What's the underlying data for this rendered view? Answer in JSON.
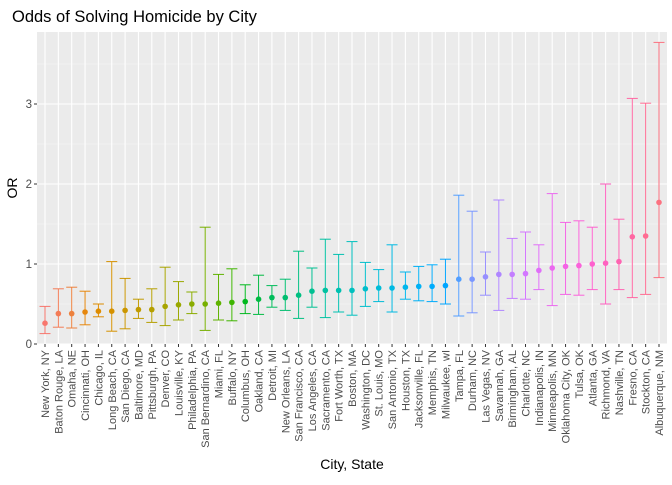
{
  "chart_data": {
    "type": "scatter",
    "title": "Odds of Solving Homicide by City",
    "xlabel": "City, State",
    "ylabel": "OR",
    "ylim": [
      0,
      3.9
    ],
    "yticks": [
      0,
      1,
      2,
      3
    ],
    "grid": true,
    "legend": "none",
    "error_bars": true,
    "points": [
      {
        "city": "New York, NY",
        "or": 0.26,
        "lo": 0.13,
        "hi": 0.47
      },
      {
        "city": "Baton Rouge, LA",
        "or": 0.38,
        "lo": 0.21,
        "hi": 0.69
      },
      {
        "city": "Omaha, NE",
        "or": 0.38,
        "lo": 0.2,
        "hi": 0.71
      },
      {
        "city": "Cincinnati, OH",
        "or": 0.4,
        "lo": 0.24,
        "hi": 0.66
      },
      {
        "city": "Chicago, IL",
        "or": 0.41,
        "lo": 0.34,
        "hi": 0.5
      },
      {
        "city": "Long Beach, CA",
        "or": 0.41,
        "lo": 0.16,
        "hi": 1.03
      },
      {
        "city": "San Diego, CA",
        "or": 0.42,
        "lo": 0.19,
        "hi": 0.82
      },
      {
        "city": "Baltimore, MD",
        "or": 0.43,
        "lo": 0.32,
        "hi": 0.56
      },
      {
        "city": "Pittsburgh, PA",
        "or": 0.43,
        "lo": 0.27,
        "hi": 0.69
      },
      {
        "city": "Denver, CO",
        "or": 0.47,
        "lo": 0.23,
        "hi": 0.96
      },
      {
        "city": "Louisville, KY",
        "or": 0.49,
        "lo": 0.3,
        "hi": 0.78
      },
      {
        "city": "Philadelphia, PA",
        "or": 0.5,
        "lo": 0.38,
        "hi": 0.65
      },
      {
        "city": "San Bernardino, CA",
        "or": 0.5,
        "lo": 0.17,
        "hi": 1.46
      },
      {
        "city": "Miami, FL",
        "or": 0.51,
        "lo": 0.3,
        "hi": 0.87
      },
      {
        "city": "Buffalo, NY",
        "or": 0.52,
        "lo": 0.29,
        "hi": 0.94
      },
      {
        "city": "Columbus, OH",
        "or": 0.53,
        "lo": 0.38,
        "hi": 0.74
      },
      {
        "city": "Oakland, CA",
        "or": 0.56,
        "lo": 0.37,
        "hi": 0.86
      },
      {
        "city": "Detroit, MI",
        "or": 0.58,
        "lo": 0.46,
        "hi": 0.73
      },
      {
        "city": "New Orleans, LA",
        "or": 0.58,
        "lo": 0.42,
        "hi": 0.81
      },
      {
        "city": "San Francisco, CA",
        "or": 0.61,
        "lo": 0.32,
        "hi": 1.16
      },
      {
        "city": "Los Angeles, CA",
        "or": 0.66,
        "lo": 0.46,
        "hi": 0.95
      },
      {
        "city": "Sacramento, CA",
        "or": 0.67,
        "lo": 0.33,
        "hi": 1.31
      },
      {
        "city": "Fort Worth, TX",
        "or": 0.67,
        "lo": 0.4,
        "hi": 1.12
      },
      {
        "city": "Boston, MA",
        "or": 0.67,
        "lo": 0.36,
        "hi": 1.28
      },
      {
        "city": "Washington, DC",
        "or": 0.69,
        "lo": 0.47,
        "hi": 1.02
      },
      {
        "city": "St. Louis, MO",
        "or": 0.7,
        "lo": 0.53,
        "hi": 0.93
      },
      {
        "city": "San Antonio, TX",
        "or": 0.7,
        "lo": 0.4,
        "hi": 1.24
      },
      {
        "city": "Houston, TX",
        "or": 0.71,
        "lo": 0.56,
        "hi": 0.9
      },
      {
        "city": "Jacksonville, FL",
        "or": 0.72,
        "lo": 0.54,
        "hi": 0.97
      },
      {
        "city": "Memphis, TN",
        "or": 0.72,
        "lo": 0.53,
        "hi": 0.99
      },
      {
        "city": "Milwaukee, wI",
        "or": 0.73,
        "lo": 0.5,
        "hi": 1.06
      },
      {
        "city": "Tampa, FL",
        "or": 0.81,
        "lo": 0.35,
        "hi": 1.86
      },
      {
        "city": "Durham, NC",
        "or": 0.81,
        "lo": 0.39,
        "hi": 1.66
      },
      {
        "city": "Las Vegas, NV",
        "or": 0.84,
        "lo": 0.61,
        "hi": 1.15
      },
      {
        "city": "Savannah, GA",
        "or": 0.87,
        "lo": 0.42,
        "hi": 1.8
      },
      {
        "city": "Birmingham, AL",
        "or": 0.87,
        "lo": 0.57,
        "hi": 1.32
      },
      {
        "city": "Charlotte, NC",
        "or": 0.88,
        "lo": 0.56,
        "hi": 1.4
      },
      {
        "city": "Indianapolis, IN",
        "or": 0.92,
        "lo": 0.68,
        "hi": 1.24
      },
      {
        "city": "Minneapolis, MN",
        "or": 0.95,
        "lo": 0.48,
        "hi": 1.88
      },
      {
        "city": "Oklahoma City, OK",
        "or": 0.97,
        "lo": 0.62,
        "hi": 1.52
      },
      {
        "city": "Tulsa, OK",
        "or": 0.98,
        "lo": 0.61,
        "hi": 1.54
      },
      {
        "city": "Atlanta, GA",
        "or": 1.0,
        "lo": 0.68,
        "hi": 1.46
      },
      {
        "city": "Richmond, VA",
        "or": 1.01,
        "lo": 0.5,
        "hi": 2.0
      },
      {
        "city": "Nashville, TN",
        "or": 1.03,
        "lo": 0.68,
        "hi": 1.56
      },
      {
        "city": "Fresno, CA",
        "or": 1.34,
        "lo": 0.58,
        "hi": 3.07
      },
      {
        "city": "Stockton, CA",
        "or": 1.35,
        "lo": 0.62,
        "hi": 3.01
      },
      {
        "city": "Albuquerque, NM",
        "or": 1.77,
        "lo": 0.83,
        "hi": 3.77
      }
    ]
  }
}
